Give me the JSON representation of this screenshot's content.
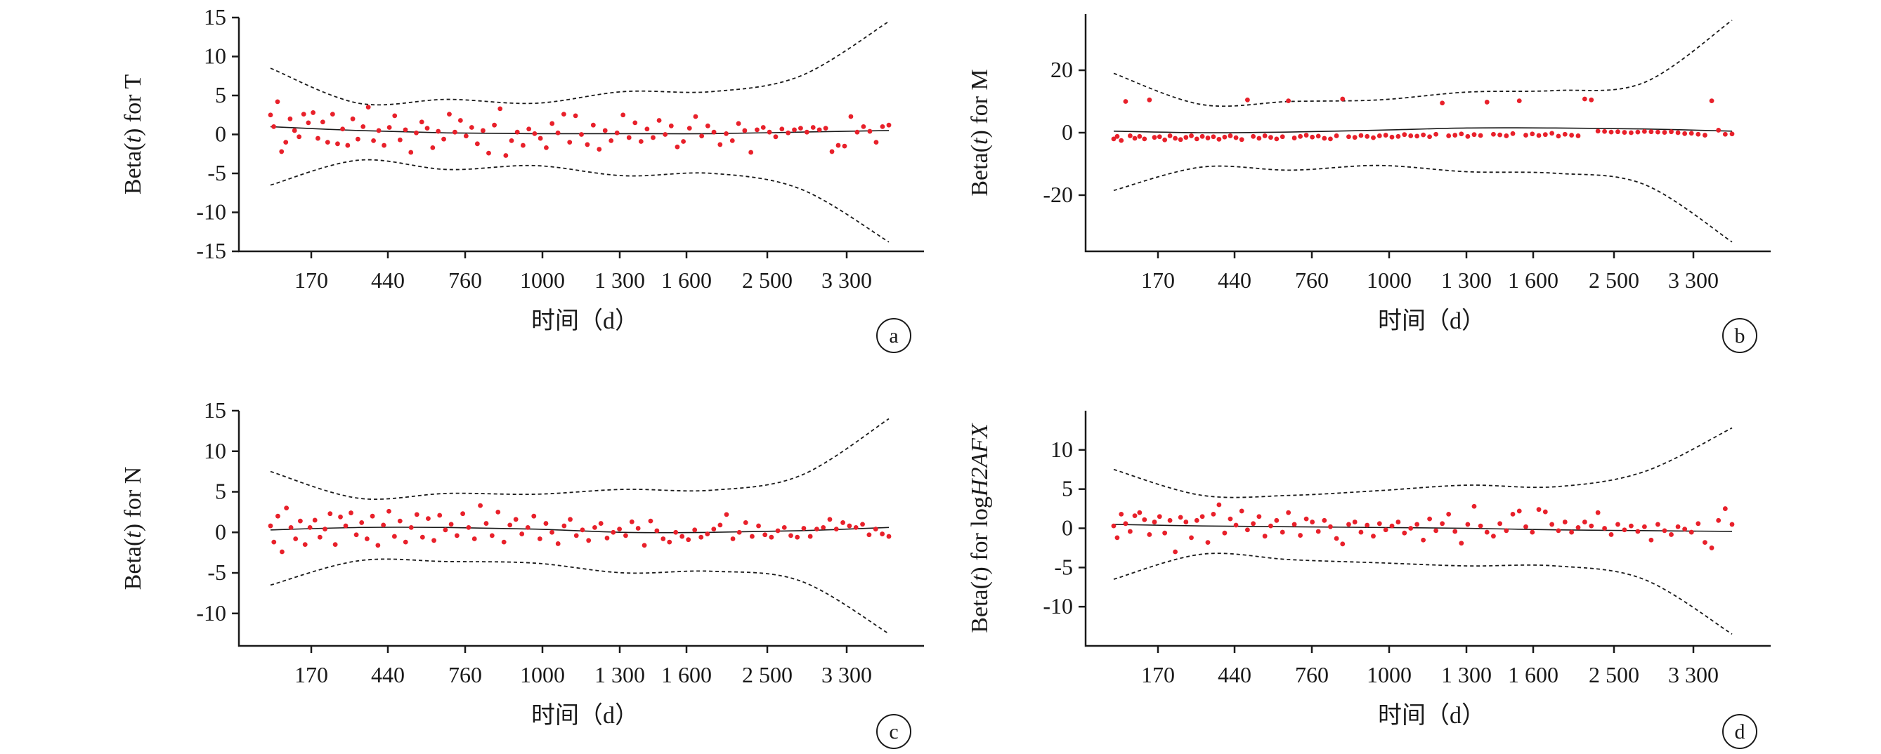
{
  "chart_data": [
    {
      "panel": "a",
      "type": "scatter",
      "ylabel_prefix": "Beta(",
      "ylabel_var": "t",
      "ylabel_suffix": ") for T",
      "ylabel_suffix_italic": "",
      "xlabel": "时间（d）",
      "ylim": [
        -15,
        15
      ],
      "yticks": [
        -15,
        -10,
        -5,
        0,
        5,
        10,
        15
      ],
      "x_tick_labels": [
        "170",
        "440",
        "760",
        "1000",
        "1 300",
        "1 600",
        "2 500",
        "3 300"
      ],
      "fit": [
        1.0,
        0.5,
        0.2,
        0.1,
        0.1,
        0.1,
        0.3,
        0.5
      ],
      "upper": [
        8.5,
        4.0,
        4.5,
        4.0,
        5.5,
        5.5,
        7.5,
        14.5
      ],
      "lower": [
        -6.5,
        -3.3,
        -4.5,
        -4.0,
        -5.3,
        -5.0,
        -7.0,
        -13.8
      ],
      "points": [
        2.5,
        1.0,
        4.2,
        -2.2,
        -1.0,
        2.0,
        0.5,
        -0.3,
        2.6,
        1.5,
        2.8,
        -0.5,
        1.6,
        -1.0,
        2.6,
        -1.2,
        0.7,
        -1.4,
        2.0,
        -0.6,
        1.0,
        3.5,
        -0.8,
        0.5,
        -1.4,
        0.9,
        2.4,
        -0.7,
        0.6,
        -2.3,
        0.2,
        1.6,
        0.8,
        -1.7,
        0.4,
        -0.6,
        2.6,
        0.3,
        1.8,
        -0.2,
        0.9,
        -1.2,
        0.5,
        -2.4,
        1.2,
        3.3,
        -2.7,
        -0.8,
        0.3,
        -1.4,
        0.7,
        0.1,
        -0.5,
        -1.7,
        1.4,
        0.2,
        2.6,
        -1.0,
        2.4,
        0.0,
        -1.3,
        1.2,
        -1.9,
        0.5,
        -0.8,
        0.2,
        2.5,
        -0.4,
        1.5,
        -0.9,
        0.7,
        -0.4,
        1.8,
        0.0,
        1.1,
        -1.6,
        -0.9,
        0.8,
        2.3,
        -0.2,
        1.1,
        0.3,
        -1.3,
        0.1,
        -0.8,
        1.4,
        0.5,
        -2.3,
        0.6,
        0.9,
        0.3,
        -0.3,
        0.7,
        0.2,
        0.6,
        0.8,
        0.3,
        0.9,
        0.6,
        0.8,
        -2.2,
        -1.4,
        -1.5,
        2.3,
        0.3,
        1.0,
        0.4,
        -1.0,
        1.0,
        1.2
      ]
    },
    {
      "panel": "b",
      "type": "scatter",
      "ylabel_prefix": "Beta(",
      "ylabel_var": "t",
      "ylabel_suffix": ") for M",
      "ylabel_suffix_italic": "",
      "xlabel": "时间（d）",
      "ylim": [
        -38,
        38
      ],
      "yticks": [
        -20,
        0,
        20
      ],
      "x_tick_labels": [
        "170",
        "440",
        "760",
        "1000",
        "1 300",
        "1 600",
        "2 500",
        "3 300"
      ],
      "fit": [
        0.5,
        0.0,
        0.2,
        0.8,
        1.5,
        1.5,
        1.2,
        0.5
      ],
      "upper": [
        19,
        9,
        10,
        10.5,
        13,
        13.5,
        16,
        36
      ],
      "lower": [
        -18.5,
        -11,
        -12,
        -10.5,
        -12.5,
        -13,
        -16.5,
        -35
      ],
      "points": [
        -2,
        -1.2,
        -2.5,
        10,
        -1.0,
        -1.8,
        -1.2,
        -2.0,
        10.5,
        -1.5,
        -1.3,
        -2.3,
        -1.0,
        -1.8,
        -2.2,
        -1.5,
        -1.0,
        -2.0,
        -1.2,
        -1.7,
        -1.3,
        -2.1,
        -1.4,
        -1.0,
        -1.6,
        -2.2,
        10.5,
        -1.2,
        -1.8,
        -1.0,
        -1.5,
        -2.0,
        -1.3,
        10.2,
        -1.7,
        -1.2,
        -0.8,
        -1.4,
        -1.1,
        -1.8,
        -2.0,
        -1.0,
        10.8,
        -1.3,
        -1.5,
        -0.9,
        -1.2,
        -1.6,
        -1.0,
        -0.8,
        -1.4,
        -1.2,
        -0.6,
        -1.0,
        -1.1,
        -0.7,
        -1.3,
        -0.5,
        9.5,
        -1.0,
        -0.8,
        -0.4,
        -1.2,
        -0.6,
        -0.9,
        9.8,
        -0.5,
        -0.7,
        -1.0,
        -0.3,
        10.2,
        -0.8,
        -0.4,
        -0.9,
        -0.6,
        -0.2,
        -1.1,
        -0.5,
        -0.8,
        -1.0,
        10.8,
        10.5,
        0.5,
        0.4,
        0.2,
        0.3,
        0.1,
        0.0,
        0.2,
        0.4,
        0.3,
        0.2,
        0.1,
        0.3,
        0.0,
        -0.3,
        -0.2,
        -0.5,
        -0.8,
        10.2,
        0.8,
        -0.5,
        -0.4
      ]
    },
    {
      "panel": "c",
      "type": "scatter",
      "ylabel_prefix": "Beta(",
      "ylabel_var": "t",
      "ylabel_suffix": ") for N",
      "ylabel_suffix_italic": "",
      "xlabel": "时间（d）",
      "ylim": [
        -14,
        15
      ],
      "yticks": [
        -10,
        -5,
        0,
        5,
        10,
        15
      ],
      "x_tick_labels": [
        "170",
        "440",
        "760",
        "1000",
        "1 300",
        "1 600",
        "2 500",
        "3 300"
      ],
      "fit": [
        0.3,
        0.6,
        0.6,
        0.4,
        0.0,
        0.0,
        0.2,
        0.6
      ],
      "upper": [
        7.5,
        4.2,
        4.8,
        4.7,
        5.3,
        5.2,
        7.0,
        14.0
      ],
      "lower": [
        -6.5,
        -3.5,
        -3.6,
        -3.8,
        -5.0,
        -4.8,
        -6.0,
        -12.5
      ],
      "points": [
        0.8,
        -1.2,
        2.0,
        -2.4,
        3.0,
        0.6,
        -0.8,
        1.4,
        -1.5,
        0.6,
        1.5,
        -0.6,
        0.4,
        2.3,
        -1.5,
        1.9,
        0.8,
        2.4,
        -0.3,
        1.2,
        -0.8,
        2.0,
        -1.6,
        0.9,
        2.6,
        -0.5,
        1.4,
        -1.2,
        0.6,
        2.2,
        -0.6,
        1.7,
        -1.0,
        2.1,
        0.3,
        1.0,
        -0.4,
        2.3,
        0.6,
        -0.8,
        3.3,
        1.1,
        -0.4,
        2.5,
        -1.2,
        0.9,
        1.6,
        -0.2,
        0.6,
        2.0,
        -0.8,
        1.1,
        0.0,
        -1.4,
        0.8,
        1.6,
        -0.4,
        0.3,
        -1.0,
        0.6,
        1.1,
        -0.7,
        0.0,
        0.4,
        -0.4,
        1.3,
        0.5,
        -1.6,
        1.4,
        0.2,
        -0.8,
        -1.2,
        0.0,
        -0.5,
        -0.9,
        0.3,
        -0.6,
        -0.2,
        0.4,
        0.9,
        2.2,
        -0.8,
        0.0,
        1.2,
        -0.5,
        0.8,
        -0.3,
        -0.6,
        0.2,
        0.6,
        -0.4,
        -0.6,
        0.5,
        -0.5,
        0.4,
        0.6,
        1.6,
        0.4,
        1.2,
        0.8,
        0.6,
        1.0,
        -0.3,
        0.4,
        -0.2,
        -0.5
      ]
    },
    {
      "panel": "d",
      "type": "scatter",
      "ylabel_prefix": "Beta(",
      "ylabel_var": "t",
      "ylabel_suffix": ") for log",
      "ylabel_suffix_italic": "H2AFX",
      "xlabel": "时间（d）",
      "ylim": [
        -15,
        15
      ],
      "yticks": [
        -10,
        -5,
        0,
        5,
        10
      ],
      "x_tick_labels": [
        "170",
        "440",
        "760",
        "1000",
        "1 300",
        "1 600",
        "2 500",
        "3 300"
      ],
      "fit": [
        0.5,
        0.3,
        0.2,
        0.1,
        0.0,
        -0.2,
        -0.3,
        -0.4
      ],
      "upper": [
        7.5,
        4.2,
        4.2,
        4.8,
        5.5,
        5.3,
        7.2,
        12.8
      ],
      "lower": [
        -6.5,
        -3.3,
        -4.0,
        -4.4,
        -4.8,
        -4.8,
        -6.5,
        -13.5
      ],
      "points": [
        0.3,
        -1.2,
        1.8,
        0.6,
        -0.4,
        1.6,
        2.0,
        1.1,
        -0.8,
        0.8,
        1.5,
        -0.6,
        1.0,
        -3.0,
        1.4,
        0.8,
        -1.2,
        1.0,
        1.5,
        -1.8,
        1.8,
        3.0,
        -0.6,
        1.2,
        0.4,
        2.2,
        -0.2,
        0.6,
        1.5,
        -1.0,
        0.3,
        1.0,
        -0.5,
        2.0,
        0.5,
        -0.9,
        1.2,
        0.8,
        -0.4,
        1.0,
        0.2,
        -1.3,
        -2.0,
        0.5,
        0.8,
        -0.5,
        0.4,
        -1.0,
        0.6,
        -0.2,
        0.3,
        0.8,
        -0.6,
        0.0,
        0.5,
        -1.5,
        1.2,
        -0.3,
        0.6,
        1.8,
        -0.4,
        -1.9,
        0.5,
        2.8,
        0.3,
        -0.5,
        -1.0,
        0.6,
        -0.3,
        1.8,
        2.2,
        0.2,
        -0.5,
        2.4,
        2.1,
        0.5,
        -0.3,
        0.8,
        -0.5,
        0.1,
        0.8,
        0.3,
        2.0,
        0.0,
        -0.8,
        0.5,
        -0.2,
        0.3,
        -0.4,
        0.2,
        -1.5,
        0.5,
        -0.3,
        -0.8,
        0.2,
        -0.1,
        -0.5,
        0.6,
        -1.8,
        -2.5,
        1.0,
        2.5,
        0.5
      ]
    }
  ]
}
